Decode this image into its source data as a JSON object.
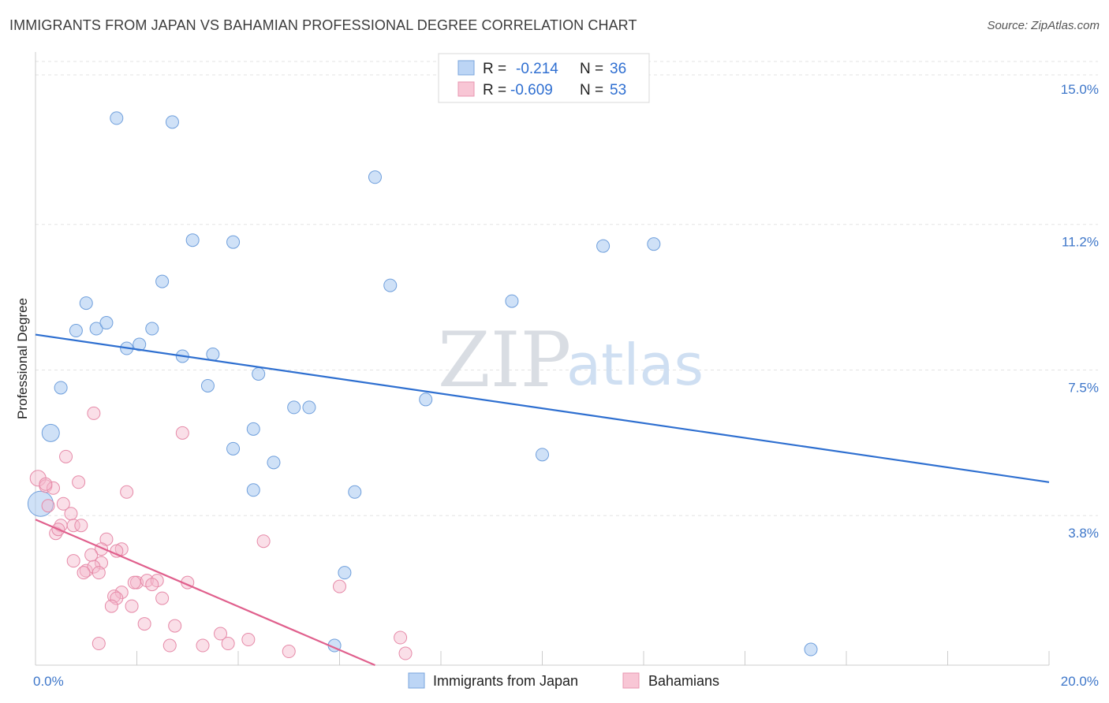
{
  "title": "IMMIGRANTS FROM JAPAN VS BAHAMIAN PROFESSIONAL DEGREE CORRELATION CHART",
  "source": "Source: ZipAtlas.com",
  "watermark": {
    "zip": "ZIP",
    "atlas": "atlas"
  },
  "legend": {
    "r_label": "R =",
    "n_label": "N =",
    "rows": [
      {
        "r": "-0.214",
        "n": "36"
      },
      {
        "r": "-0.609",
        "n": "53"
      }
    ]
  },
  "chart_data": {
    "type": "scatter",
    "title": "IMMIGRANTS FROM JAPAN VS BAHAMIAN PROFESSIONAL DEGREE CORRELATION CHART",
    "ylabel": "Professional Degree",
    "xlabel": "",
    "xlim": [
      0,
      20
    ],
    "ylim": [
      0,
      15.7
    ],
    "x_tick_labels": [
      "0.0%",
      "20.0%"
    ],
    "y_ticks": [
      3.8,
      7.5,
      11.2,
      15.0
    ],
    "y_tick_labels": [
      "3.8%",
      "7.5%",
      "11.2%",
      "15.0%"
    ],
    "grid": true,
    "legend_position": "top-center",
    "series": [
      {
        "name": "Immigrants from Japan",
        "color": "#a8c8f0",
        "stroke": "#6f9fdc",
        "line_color": "#2e6fd0",
        "trend": {
          "x0": 0,
          "y0": 8.4,
          "x1": 20,
          "y1": 4.65
        },
        "points": [
          {
            "x": 1.6,
            "y": 13.9
          },
          {
            "x": 2.7,
            "y": 13.8
          },
          {
            "x": 6.7,
            "y": 12.4
          },
          {
            "x": 3.1,
            "y": 10.8
          },
          {
            "x": 3.9,
            "y": 10.75
          },
          {
            "x": 11.2,
            "y": 10.65
          },
          {
            "x": 12.2,
            "y": 10.7
          },
          {
            "x": 2.5,
            "y": 9.75
          },
          {
            "x": 7.0,
            "y": 9.65
          },
          {
            "x": 1.0,
            "y": 9.2
          },
          {
            "x": 9.4,
            "y": 9.25
          },
          {
            "x": 0.8,
            "y": 8.5
          },
          {
            "x": 1.2,
            "y": 8.55
          },
          {
            "x": 1.4,
            "y": 8.7
          },
          {
            "x": 2.3,
            "y": 8.55
          },
          {
            "x": 1.8,
            "y": 8.05
          },
          {
            "x": 2.05,
            "y": 8.15
          },
          {
            "x": 2.9,
            "y": 7.85
          },
          {
            "x": 3.5,
            "y": 7.9
          },
          {
            "x": 4.4,
            "y": 7.4
          },
          {
            "x": 0.5,
            "y": 7.05
          },
          {
            "x": 3.4,
            "y": 7.1
          },
          {
            "x": 7.7,
            "y": 6.75
          },
          {
            "x": 5.1,
            "y": 6.55
          },
          {
            "x": 5.4,
            "y": 6.55
          },
          {
            "x": 0.3,
            "y": 5.9
          },
          {
            "x": 4.3,
            "y": 6.0
          },
          {
            "x": 3.9,
            "y": 5.5
          },
          {
            "x": 10.0,
            "y": 5.35
          },
          {
            "x": 4.7,
            "y": 5.15
          },
          {
            "x": 4.3,
            "y": 4.45
          },
          {
            "x": 6.3,
            "y": 4.4
          },
          {
            "x": 0.1,
            "y": 4.1
          },
          {
            "x": 6.1,
            "y": 2.35
          },
          {
            "x": 5.9,
            "y": 0.5
          },
          {
            "x": 15.3,
            "y": 0.4
          }
        ]
      },
      {
        "name": "Bahamians",
        "color": "#f5b8cb",
        "stroke": "#e68aa8",
        "line_color": "#e0608d",
        "trend": {
          "x0": 0,
          "y0": 3.7,
          "x1": 6.7,
          "y1": 0
        },
        "points": [
          {
            "x": 1.15,
            "y": 6.4
          },
          {
            "x": 2.9,
            "y": 5.9
          },
          {
            "x": 0.6,
            "y": 5.3
          },
          {
            "x": 0.05,
            "y": 4.75
          },
          {
            "x": 0.2,
            "y": 4.55
          },
          {
            "x": 0.35,
            "y": 4.5
          },
          {
            "x": 0.85,
            "y": 4.65
          },
          {
            "x": 1.8,
            "y": 4.4
          },
          {
            "x": 0.25,
            "y": 4.05
          },
          {
            "x": 0.55,
            "y": 4.1
          },
          {
            "x": 0.7,
            "y": 3.85
          },
          {
            "x": 0.5,
            "y": 3.55
          },
          {
            "x": 0.75,
            "y": 3.55
          },
          {
            "x": 0.9,
            "y": 3.55
          },
          {
            "x": 0.4,
            "y": 3.35
          },
          {
            "x": 4.5,
            "y": 3.15
          },
          {
            "x": 1.4,
            "y": 3.2
          },
          {
            "x": 1.3,
            "y": 2.95
          },
          {
            "x": 1.7,
            "y": 2.95
          },
          {
            "x": 1.6,
            "y": 2.9
          },
          {
            "x": 1.1,
            "y": 2.8
          },
          {
            "x": 0.75,
            "y": 2.65
          },
          {
            "x": 1.3,
            "y": 2.6
          },
          {
            "x": 1.0,
            "y": 2.4
          },
          {
            "x": 1.15,
            "y": 2.5
          },
          {
            "x": 1.25,
            "y": 2.35
          },
          {
            "x": 0.95,
            "y": 2.35
          },
          {
            "x": 2.0,
            "y": 2.1
          },
          {
            "x": 2.2,
            "y": 2.15
          },
          {
            "x": 2.4,
            "y": 2.15
          },
          {
            "x": 3.0,
            "y": 2.1
          },
          {
            "x": 6.0,
            "y": 2.0
          },
          {
            "x": 1.7,
            "y": 1.85
          },
          {
            "x": 1.55,
            "y": 1.75
          },
          {
            "x": 1.6,
            "y": 1.7
          },
          {
            "x": 2.5,
            "y": 1.7
          },
          {
            "x": 1.5,
            "y": 1.5
          },
          {
            "x": 1.9,
            "y": 1.5
          },
          {
            "x": 2.15,
            "y": 1.05
          },
          {
            "x": 2.75,
            "y": 1.0
          },
          {
            "x": 3.65,
            "y": 0.8
          },
          {
            "x": 4.2,
            "y": 0.65
          },
          {
            "x": 7.2,
            "y": 0.7
          },
          {
            "x": 1.25,
            "y": 0.55
          },
          {
            "x": 2.65,
            "y": 0.5
          },
          {
            "x": 3.3,
            "y": 0.5
          },
          {
            "x": 3.8,
            "y": 0.55
          },
          {
            "x": 5.0,
            "y": 0.35
          },
          {
            "x": 7.3,
            "y": 0.3
          },
          {
            "x": 0.2,
            "y": 4.6
          },
          {
            "x": 1.95,
            "y": 2.1
          },
          {
            "x": 0.45,
            "y": 3.45
          },
          {
            "x": 2.3,
            "y": 2.05
          }
        ]
      }
    ]
  }
}
